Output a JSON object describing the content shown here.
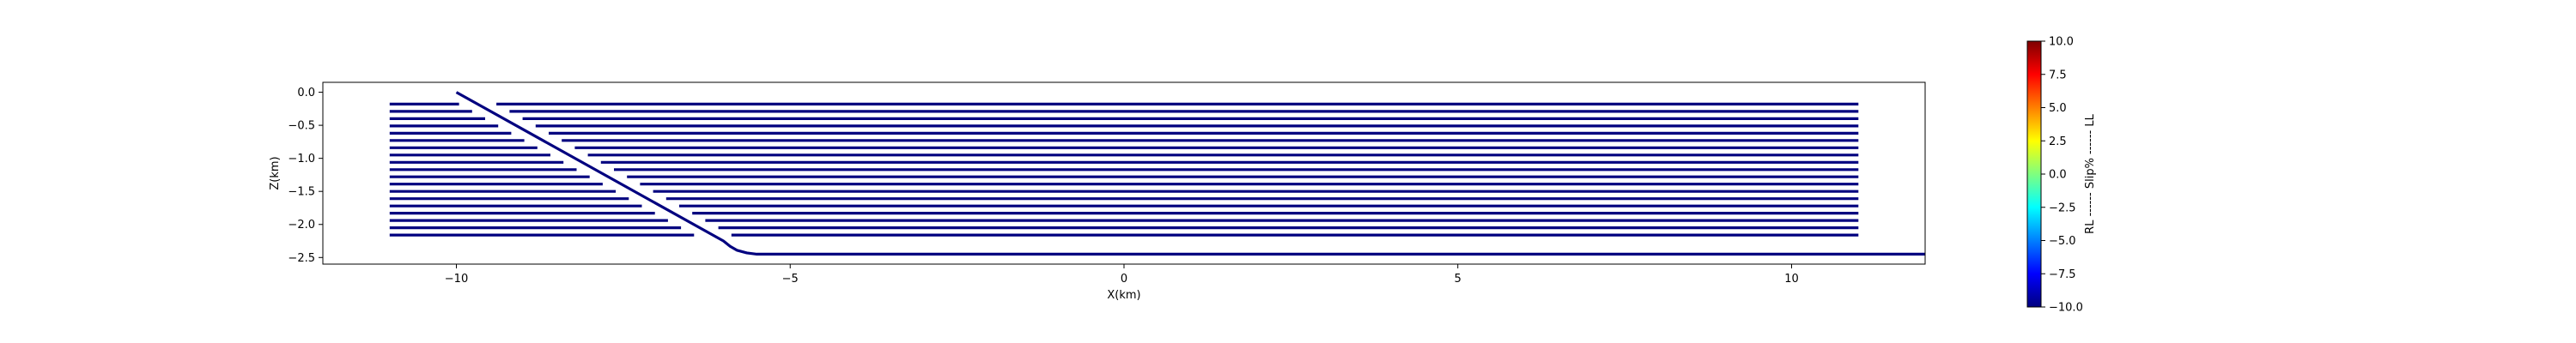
{
  "chart_data": {
    "type": "line",
    "title": "",
    "xlabel": "X(km)",
    "ylabel": "Z(km)",
    "xlim": [
      -12.0,
      12.0
    ],
    "ylim": [
      -2.6,
      0.15
    ],
    "xticks": [
      -10,
      -5,
      0,
      5,
      10
    ],
    "xtick_labels": [
      "−10",
      "−5",
      "0",
      "5",
      "10"
    ],
    "yticks": [
      0.0,
      -0.5,
      -1.0,
      -1.5,
      -2.0,
      -2.5
    ],
    "ytick_labels": [
      "0.0",
      "−0.5",
      "−1.0",
      "−1.5",
      "−2.0",
      "−2.5"
    ],
    "grid": false,
    "legend": "none",
    "line_color": "#00007f",
    "fault_trace": {
      "x": [
        -10.0,
        -6.0,
        -5.9,
        -5.8,
        -5.65,
        -5.5,
        12.0
      ],
      "y": [
        0.0,
        -2.25,
        -2.33,
        -2.39,
        -2.43,
        -2.45,
        -2.45
      ]
    },
    "horizontal_layers": {
      "x_start": -11.0,
      "x_end": 11.0,
      "depths": [
        -0.18,
        -0.29,
        -0.4,
        -0.51,
        -0.62,
        -0.73,
        -0.84,
        -0.95,
        -1.06,
        -1.17,
        -1.28,
        -1.39,
        -1.5,
        -1.61,
        -1.72,
        -1.83,
        -1.94,
        -2.05,
        -2.16
      ]
    },
    "colorbar": {
      "label": "RL ------ Slip% ------ LL",
      "range": [
        -10.0,
        10.0
      ],
      "ticks": [
        10.0,
        7.5,
        5.0,
        2.5,
        0.0,
        -2.5,
        -5.0,
        -7.5,
        -10.0
      ],
      "tick_labels": [
        "10.0",
        "7.5",
        "5.0",
        "2.5",
        "0.0",
        "−2.5",
        "−5.0",
        "−7.5",
        "−10.0"
      ],
      "colormap": [
        "#00007f",
        "#0000ff",
        "#007fff",
        "#00ffff",
        "#7fff7f",
        "#ffff00",
        "#ff7f00",
        "#ff0000",
        "#7f0000"
      ]
    }
  }
}
